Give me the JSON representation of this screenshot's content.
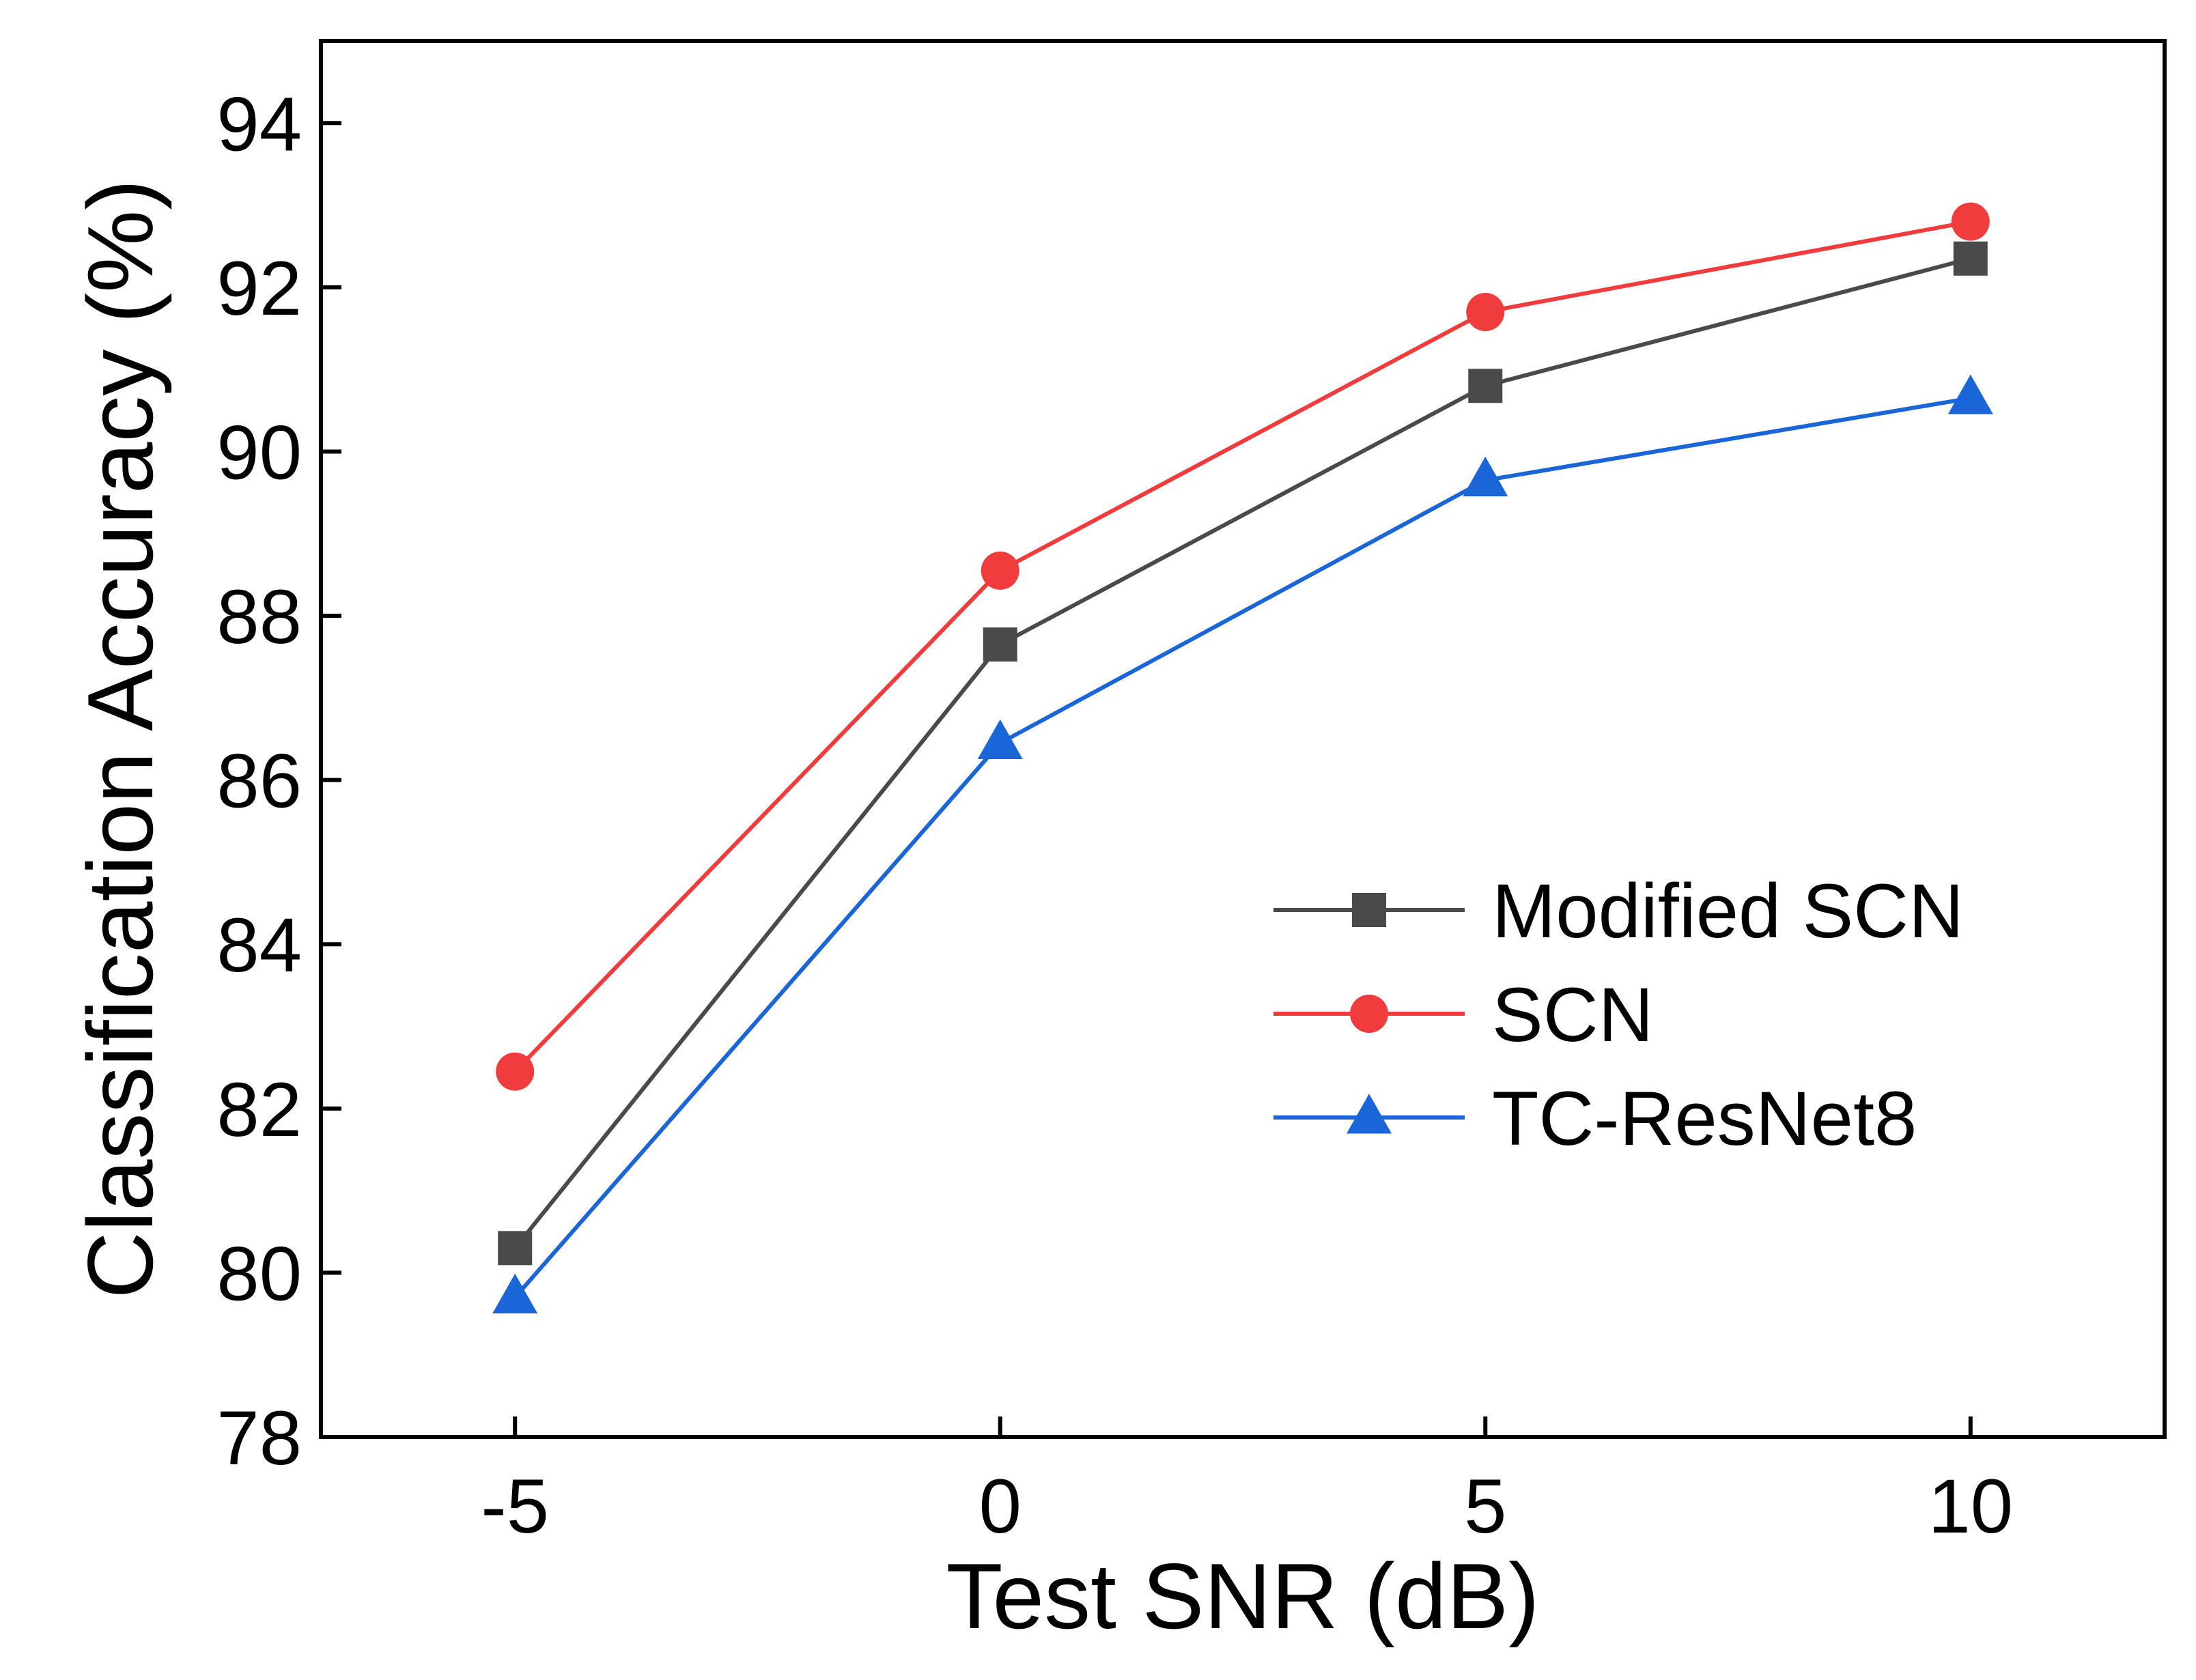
{
  "chart_data": {
    "type": "line",
    "xlabel": "Test SNR (dB)",
    "ylabel": "Classification Accuracy (%)",
    "xlim": [
      -7,
      12
    ],
    "ylim": [
      78,
      95
    ],
    "x_ticks": [
      -5,
      0,
      5,
      10
    ],
    "x_tick_labels": [
      "-5",
      "0",
      "5",
      "10"
    ],
    "y_ticks": [
      78,
      80,
      82,
      84,
      86,
      88,
      90,
      92,
      94
    ],
    "y_tick_labels": [
      "78",
      "80",
      "82",
      "84",
      "86",
      "88",
      "90",
      "92",
      "94"
    ],
    "grid": false,
    "legend_position": "lower-right",
    "x": [
      -5,
      0,
      5,
      10
    ],
    "series": [
      {
        "name": "Modified SCN",
        "values": [
          80.3,
          87.65,
          90.8,
          92.35
        ],
        "color": "#4a4a4a",
        "marker": "square"
      },
      {
        "name": "SCN",
        "values": [
          82.45,
          88.55,
          91.7,
          92.8
        ],
        "color": "#f03c3c",
        "marker": "circle"
      },
      {
        "name": "TC-ResNet8",
        "values": [
          79.7,
          86.45,
          89.65,
          90.65
        ],
        "color": "#1a66d9",
        "marker": "triangle"
      }
    ]
  }
}
